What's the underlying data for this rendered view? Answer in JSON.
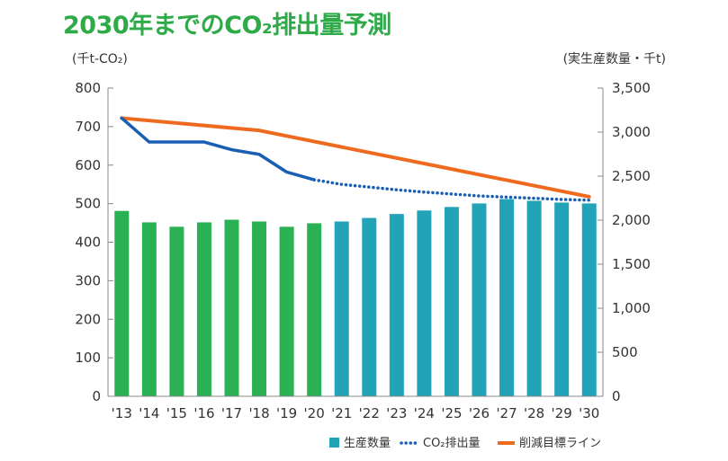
{
  "chart_data": {
    "type": "bar",
    "title": "2030年までのCO₂排出量予測",
    "categories": [
      "'13",
      "'14",
      "'15",
      "'16",
      "'17",
      "'18",
      "'19",
      "'20",
      "'21",
      "'22",
      "'23",
      "'24",
      "'25",
      "'26",
      "'27",
      "'28",
      "'29",
      "'30"
    ],
    "left_axis": {
      "unit_label": "(千t-CO₂)",
      "ylim": [
        0,
        800
      ],
      "ticks": [
        "0",
        "100",
        "200",
        "300",
        "400",
        "500",
        "600",
        "700",
        "800"
      ]
    },
    "right_axis": {
      "unit_label": "(実生産数量・千t)",
      "ylim": [
        0,
        3500
      ],
      "ticks": [
        "0",
        "500",
        "1,000",
        "1,500",
        "2,000",
        "2,500",
        "3,000",
        "3,500"
      ]
    },
    "series": [
      {
        "name": "生産数量",
        "type": "bar",
        "axis": "right",
        "values": [
          2105,
          1975,
          1925,
          1975,
          2005,
          1985,
          1925,
          1965,
          1985,
          2025,
          2070,
          2110,
          2150,
          2190,
          2240,
          2220,
          2200,
          2190
        ],
        "colors": {
          "actual": "#2ab153",
          "forecast": "#22a3b8"
        },
        "actual_through": "'20"
      },
      {
        "name": "CO₂排出量",
        "type": "line",
        "axis": "left",
        "color": "#1a5fb4",
        "actual": {
          "x": [
            "'13",
            "'14",
            "'15",
            "'16",
            "'17",
            "'18",
            "'19",
            "'20"
          ],
          "values": [
            722,
            660,
            660,
            660,
            640,
            628,
            582,
            562
          ]
        },
        "forecast": {
          "x": [
            "'20",
            "'21",
            "'22",
            "'23",
            "'24",
            "'25",
            "'26",
            "'27",
            "'28",
            "'29",
            "'30"
          ],
          "values": [
            562,
            550,
            543,
            536,
            530,
            525,
            520,
            517,
            514,
            511,
            509
          ]
        }
      },
      {
        "name": "削減目標ライン",
        "type": "line",
        "axis": "left",
        "color": "#ee6a1f",
        "x": [
          "'13",
          "'18",
          "'30"
        ],
        "values": [
          722,
          690,
          518
        ]
      }
    ],
    "grid": false,
    "legend_position": "bottom-right"
  }
}
